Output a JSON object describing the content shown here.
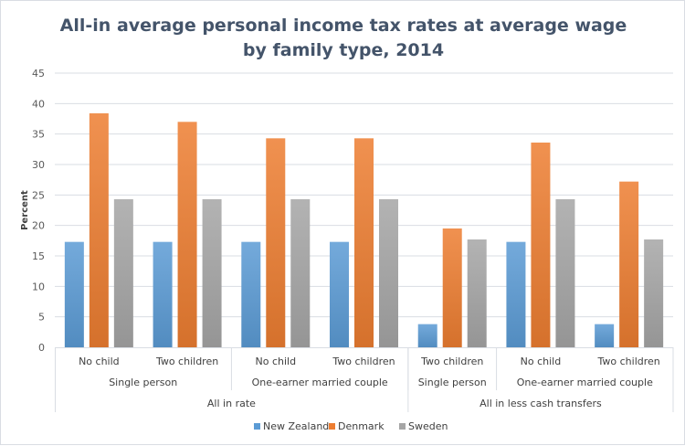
{
  "chart_data": {
    "type": "bar",
    "title": [
      "All-in average personal  income tax rates at average wage",
      "by family type, 2014"
    ],
    "xlabel": "",
    "ylabel": "Percent",
    "ylim": [
      0,
      45
    ],
    "yticks": [
      0,
      5,
      10,
      15,
      20,
      25,
      30,
      35,
      40,
      45
    ],
    "grid": true,
    "legend_position": "bottom",
    "categories": [
      "No child",
      "Two children",
      "No child",
      "Two children",
      "Two children",
      "No child",
      "Two children"
    ],
    "category_groups_level2": [
      {
        "label": "Single person",
        "span": 2
      },
      {
        "label": "One-earner married couple",
        "span": 2
      },
      {
        "label": "Single person",
        "span": 1
      },
      {
        "label": "One-earner married couple",
        "span": 2
      }
    ],
    "category_groups_level3": [
      {
        "label": "All in rate",
        "span": 4
      },
      {
        "label": "All in less cash transfers",
        "span": 3
      }
    ],
    "series": [
      {
        "name": "New Zealand",
        "color": "#5b9bd5",
        "values": [
          17.3,
          17.3,
          17.3,
          17.3,
          3.8,
          17.3,
          3.8
        ]
      },
      {
        "name": "Denmark",
        "color": "#ed7d31",
        "values": [
          38.4,
          37.0,
          34.3,
          34.3,
          19.5,
          33.6,
          27.2
        ]
      },
      {
        "name": "Sweden",
        "color": "#a5a5a5",
        "values": [
          24.3,
          24.3,
          24.3,
          24.3,
          17.7,
          24.3,
          17.7
        ]
      }
    ]
  }
}
